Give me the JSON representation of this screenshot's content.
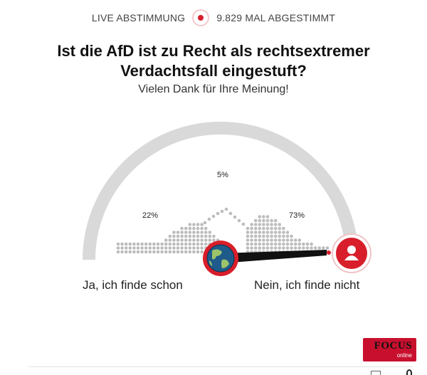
{
  "header": {
    "live_label": "LIVE ABSTIMMUNG",
    "vote_count_label": "9.829 MAL ABGESTIMMT"
  },
  "poll": {
    "question": "Ist die AfD ist zu Recht als rechtsextremer Verdachtsfall eingestuft?",
    "thanks": "Vielen Dank für Ihre Meinung!",
    "results": [
      {
        "label": "22%",
        "value": 22,
        "side": "left"
      },
      {
        "label": "5%",
        "value": 5,
        "side": "middle"
      },
      {
        "label": "73%",
        "value": 73,
        "side": "right"
      }
    ],
    "answer_left": "Ja, ich finde schon",
    "answer_right": "Nein, ich finde nicht"
  },
  "brand": {
    "name": "FOCUS",
    "sub": "online"
  },
  "colors": {
    "accent": "#d81e2a",
    "arc": "#d9d9d9",
    "dots": "#bdbdbd",
    "needle": "#111111"
  },
  "icons": {
    "globe": "globe-icon",
    "user": "user-icon",
    "live": "record-dot-icon"
  }
}
